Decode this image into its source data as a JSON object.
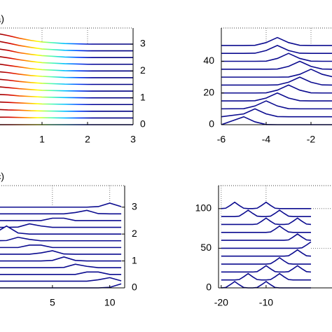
{
  "chart_data": [
    {
      "type": "line",
      "label": "(a)",
      "y_axis_side": "right",
      "grid": true,
      "colormap": [
        "#7f0000",
        "#d40000",
        "#ff7a00",
        "#ffff00",
        "#55ffaa",
        "#00bfff",
        "#0040ff",
        "#000099",
        "#000080",
        "#000080",
        "#000080"
      ],
      "xlim": [
        0,
        3
      ],
      "ylim": [
        0,
        3.6
      ],
      "xticks": [
        1,
        2,
        3
      ],
      "yticks": [
        0,
        1,
        2,
        3
      ],
      "x": [
        0,
        0.25,
        0.5,
        0.75,
        1,
        1.5,
        2,
        3
      ],
      "series": [
        {
          "values": [
            0,
            0,
            0,
            0,
            0,
            0,
            0,
            0
          ]
        },
        {
          "values": [
            0.28,
            0.28,
            0.27,
            0.26,
            0.26,
            0.25,
            0.25,
            0.25
          ]
        },
        {
          "values": [
            0.57,
            0.55,
            0.54,
            0.52,
            0.51,
            0.5,
            0.5,
            0.5
          ]
        },
        {
          "values": [
            0.85,
            0.83,
            0.81,
            0.79,
            0.77,
            0.76,
            0.75,
            0.75
          ]
        },
        {
          "values": [
            1.13,
            1.11,
            1.07,
            1.05,
            1.03,
            1.01,
            1,
            1
          ]
        },
        {
          "values": [
            1.42,
            1.38,
            1.34,
            1.31,
            1.28,
            1.26,
            1.25,
            1.25
          ]
        },
        {
          "values": [
            1.7,
            1.66,
            1.61,
            1.57,
            1.54,
            1.51,
            1.5,
            1.5
          ]
        },
        {
          "values": [
            1.98,
            1.94,
            1.88,
            1.83,
            1.8,
            1.76,
            1.75,
            1.75
          ]
        },
        {
          "values": [
            2.27,
            2.21,
            2.15,
            2.09,
            2.05,
            2.01,
            2,
            2
          ]
        },
        {
          "values": [
            2.55,
            2.49,
            2.42,
            2.36,
            2.31,
            2.27,
            2.25,
            2.25
          ]
        },
        {
          "values": [
            2.83,
            2.77,
            2.68,
            2.62,
            2.57,
            2.52,
            2.5,
            2.5
          ]
        },
        {
          "values": [
            3.12,
            3.04,
            2.95,
            2.88,
            2.82,
            2.77,
            2.75,
            2.75
          ]
        },
        {
          "values": [
            3.4,
            3.32,
            3.22,
            3.14,
            3.08,
            3.02,
            3,
            3
          ]
        }
      ]
    },
    {
      "type": "line",
      "y_axis_side": "left",
      "grid": true,
      "color": "#0b0b8f",
      "xlim": [
        -6,
        -1
      ],
      "ylim": [
        0,
        61
      ],
      "xticks": [
        -6,
        -4,
        -2
      ],
      "yticks": [
        0,
        20,
        40
      ],
      "x": [
        -6,
        -5,
        -4.5,
        -4,
        -3.5,
        -3,
        -2.5,
        -2,
        -1.5,
        -1
      ],
      "series": [
        {
          "values": [
            0,
            5,
            1.8,
            0.1,
            0,
            0,
            0,
            0,
            0,
            0
          ]
        },
        {
          "values": [
            5,
            6.8,
            10,
            6.8,
            5.1,
            5,
            5,
            5,
            5,
            5
          ]
        },
        {
          "values": [
            10,
            10.1,
            11.8,
            15,
            11.8,
            10.1,
            10,
            10,
            10,
            10
          ]
        },
        {
          "values": [
            15,
            15,
            15.1,
            16.8,
            20,
            16.8,
            15.1,
            15,
            15,
            15
          ]
        },
        {
          "values": [
            20,
            20,
            20,
            20.1,
            21.8,
            25,
            21.8,
            20.1,
            20,
            20
          ]
        },
        {
          "values": [
            25,
            25,
            25,
            25,
            25.1,
            26.8,
            30,
            26.8,
            25.1,
            25
          ]
        },
        {
          "values": [
            30,
            30,
            30,
            30,
            30,
            30.1,
            31.8,
            35,
            31.8,
            30.1
          ]
        },
        {
          "values": [
            35,
            35,
            35,
            35,
            35.1,
            36.8,
            40,
            36.8,
            35.1,
            35
          ]
        },
        {
          "values": [
            40,
            40,
            40,
            40.1,
            41.8,
            45,
            41.8,
            40.1,
            40,
            40
          ]
        },
        {
          "values": [
            45,
            45,
            45.1,
            46.8,
            50,
            46.8,
            45.1,
            45,
            45,
            45
          ]
        },
        {
          "values": [
            50,
            50,
            50.1,
            51.8,
            55,
            51.8,
            50.1,
            50,
            50,
            50
          ]
        }
      ]
    },
    {
      "type": "line",
      "label": "(c)",
      "y_axis_side": "right",
      "grid": true,
      "color": "#0b0b8f",
      "xlim": [
        0,
        11.3
      ],
      "ylim": [
        0,
        3.8
      ],
      "xticks": [
        5,
        10
      ],
      "yticks": [
        0,
        1,
        2,
        3
      ],
      "x": [
        0,
        1,
        2,
        3,
        4,
        5,
        6,
        7,
        8,
        9,
        10,
        11
      ],
      "series": [
        {
          "values": [
            0,
            0,
            0,
            0,
            0,
            0,
            0,
            0,
            0,
            0,
            0.02,
            0.15
          ]
        },
        {
          "values": [
            0.25,
            0.25,
            0.25,
            0.25,
            0.25,
            0.25,
            0.25,
            0.25,
            0.25,
            0.3,
            0.38,
            0.26
          ]
        },
        {
          "values": [
            0.5,
            0.5,
            0.5,
            0.5,
            0.5,
            0.5,
            0.5,
            0.5,
            0.59,
            0.59,
            0.5,
            0.5
          ]
        },
        {
          "values": [
            0.75,
            0.75,
            0.75,
            0.75,
            0.75,
            0.75,
            0.76,
            0.88,
            0.8,
            0.75,
            0.75,
            0.75
          ]
        },
        {
          "values": [
            1,
            1,
            1,
            1,
            1,
            1.02,
            1.15,
            1.02,
            1,
            1,
            1,
            1
          ]
        },
        {
          "values": [
            1.25,
            1.25,
            1.25,
            1.25,
            1.3,
            1.38,
            1.26,
            1.25,
            1.25,
            1.25,
            1.25,
            1.25
          ]
        },
        {
          "values": [
            1.5,
            1.5,
            1.5,
            1.59,
            1.59,
            1.5,
            1.5,
            1.5,
            1.5,
            1.5,
            1.5,
            1.5
          ]
        },
        {
          "values": [
            1.75,
            1.76,
            1.88,
            1.8,
            1.75,
            1.75,
            1.75,
            1.75,
            1.75,
            1.75,
            1.75,
            1.75
          ]
        },
        {
          "values": [
            2.04,
            2.3,
            2.04,
            2,
            2,
            2,
            2,
            2,
            2,
            2,
            2,
            2
          ]
        },
        {
          "values": [
            2.25,
            2.25,
            2.26,
            2.38,
            2.3,
            2.25,
            2.25,
            2.25,
            2.25,
            2.25,
            2.25,
            2.25
          ]
        },
        {
          "values": [
            2.5,
            2.5,
            2.5,
            2.5,
            2.5,
            2.59,
            2.59,
            2.5,
            2.5,
            2.5,
            2.5,
            2.5
          ]
        },
        {
          "values": [
            2.75,
            2.75,
            2.75,
            2.75,
            2.75,
            2.75,
            2.75,
            2.8,
            2.88,
            2.76,
            2.75,
            2.75
          ]
        },
        {
          "values": [
            3,
            3,
            3,
            3,
            3,
            3,
            3,
            3,
            3,
            3.02,
            3.15,
            3.02
          ]
        }
      ]
    },
    {
      "type": "line",
      "y_axis_side": "left",
      "grid": true,
      "color": "#0b0b8f",
      "xlim": [
        -20.6,
        5
      ],
      "ylim": [
        0,
        129
      ],
      "xticks": [
        -20,
        -10
      ],
      "yticks": [
        0,
        50,
        100
      ],
      "x": [
        -20,
        -19,
        -18,
        -17,
        -16,
        -15,
        -14,
        -13,
        -12,
        -11,
        -10,
        -9,
        -8,
        -7,
        -6,
        -5,
        -4,
        -3,
        -2,
        -1,
        0
      ],
      "series": [
        {
          "values": [
            0,
            0.5,
            4,
            8,
            4,
            0.5,
            0,
            0,
            0.5,
            4,
            8,
            4,
            0.5,
            0,
            0,
            0,
            0,
            0,
            0,
            0,
            0
          ]
        },
        {
          "values": [
            10,
            10,
            10,
            10,
            10.5,
            14,
            18,
            14,
            10.5,
            10,
            10,
            10.5,
            14,
            18,
            14,
            10.5,
            10,
            10,
            10,
            10,
            10
          ]
        },
        {
          "values": [
            20,
            20,
            20,
            20,
            20,
            20,
            20,
            20,
            20.5,
            24,
            28,
            24,
            20.5,
            20,
            20,
            20.5,
            24,
            28,
            24,
            20.5,
            20
          ]
        },
        {
          "values": [
            30,
            30,
            30,
            30,
            30,
            30,
            30,
            30,
            30,
            30,
            30,
            30.5,
            34,
            38,
            34,
            30.5,
            30,
            30,
            30,
            30,
            30
          ]
        },
        {
          "values": [
            40,
            40,
            40,
            40,
            40,
            40,
            40,
            40,
            40,
            40,
            40,
            40,
            40,
            40,
            40,
            40.5,
            44,
            48,
            44,
            40.5,
            40
          ]
        },
        {
          "values": [
            50,
            50,
            50,
            50,
            50,
            50,
            50,
            50,
            50,
            50,
            50,
            50,
            50,
            50,
            50,
            50,
            50,
            50,
            50.5,
            54,
            58
          ]
        },
        {
          "values": [
            60,
            60,
            60,
            60,
            60,
            60,
            60,
            60,
            60,
            60,
            60,
            60,
            60,
            60,
            60,
            60.5,
            64,
            68,
            64,
            60.5,
            60
          ]
        },
        {
          "values": [
            70,
            70,
            70,
            70,
            70,
            70,
            70,
            70,
            70,
            70,
            70,
            70.5,
            74,
            78,
            74,
            70.5,
            70,
            70,
            70,
            70,
            70
          ]
        },
        {
          "values": [
            80,
            80,
            80,
            80,
            80,
            80,
            80,
            80,
            80.5,
            84,
            88,
            84,
            80.5,
            80,
            80,
            80.5,
            84,
            88,
            84,
            80.5,
            80
          ]
        },
        {
          "values": [
            90,
            90,
            90,
            90,
            90.5,
            94,
            98,
            94,
            90.5,
            90,
            90,
            90.5,
            94,
            98,
            94,
            90.5,
            90,
            90,
            90,
            90,
            90
          ]
        },
        {
          "values": [
            100,
            100.5,
            104,
            108,
            104,
            100.5,
            100,
            100,
            100.5,
            104,
            108,
            104,
            100.5,
            100,
            100,
            100,
            100,
            100,
            100,
            100,
            100
          ]
        }
      ]
    }
  ]
}
